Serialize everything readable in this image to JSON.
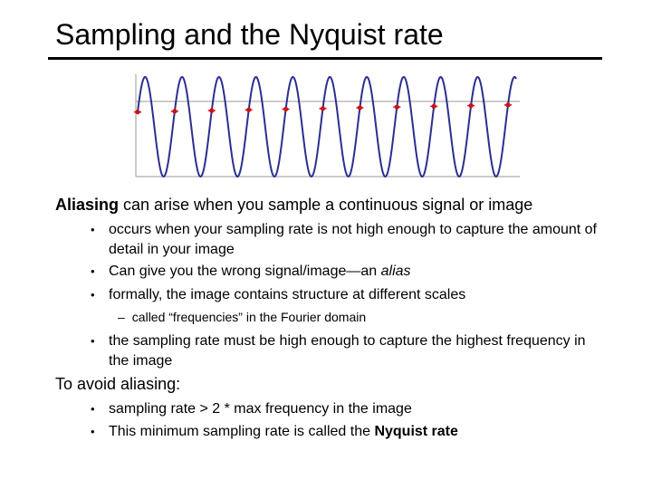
{
  "slide": {
    "title": "Sampling and the Nyquist rate"
  },
  "figure": {
    "signal_color": "#2b2f8f",
    "sample_color": "#d01010",
    "axis_color": "#999999"
  },
  "section1": {
    "lead_bold": "Aliasing",
    "lead_rest": " can arise when you sample a continuous signal or image",
    "bullet_symbol": "•",
    "bullets": [
      "occurs when your sampling rate is not high enough to capture the amount of detail in your image",
      "Can give you the wrong signal/image—an ",
      "formally, the image contains structure at different scales"
    ],
    "alias_word": "alias",
    "sub_dash": "–",
    "sub_bullet": "called “frequencies” in the Fourier domain",
    "bullet4": "the sampling rate must be high enough to capture the highest frequency in the image"
  },
  "section2": {
    "heading": "To avoid aliasing:",
    "bullets": [
      "sampling rate > 2 * max frequency in the image",
      "This minimum sampling rate is called the "
    ],
    "nyquist_bold": "Nyquist rate"
  }
}
